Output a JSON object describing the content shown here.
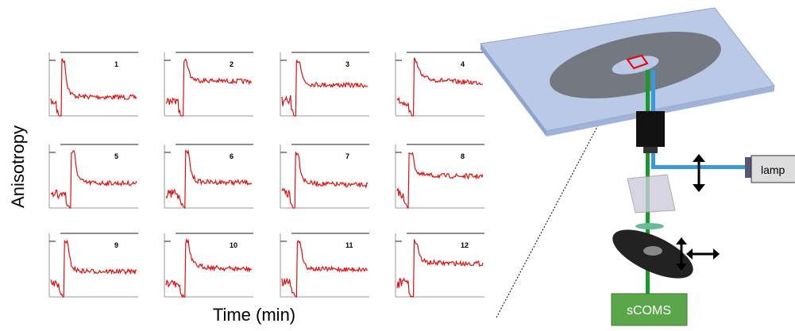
{
  "axes": {
    "y_label": "Anisotropy",
    "x_label": "Time (min)"
  },
  "panels": [
    {
      "label": "1"
    },
    {
      "label": "2"
    },
    {
      "label": "3"
    },
    {
      "label": "4"
    },
    {
      "label": "5"
    },
    {
      "label": "6"
    },
    {
      "label": "7"
    },
    {
      "label": "8"
    },
    {
      "label": "9"
    },
    {
      "label": "10"
    },
    {
      "label": "11"
    },
    {
      "label": "12"
    }
  ],
  "diagram": {
    "lamp": "lamp",
    "detector": "sCOMS"
  }
}
